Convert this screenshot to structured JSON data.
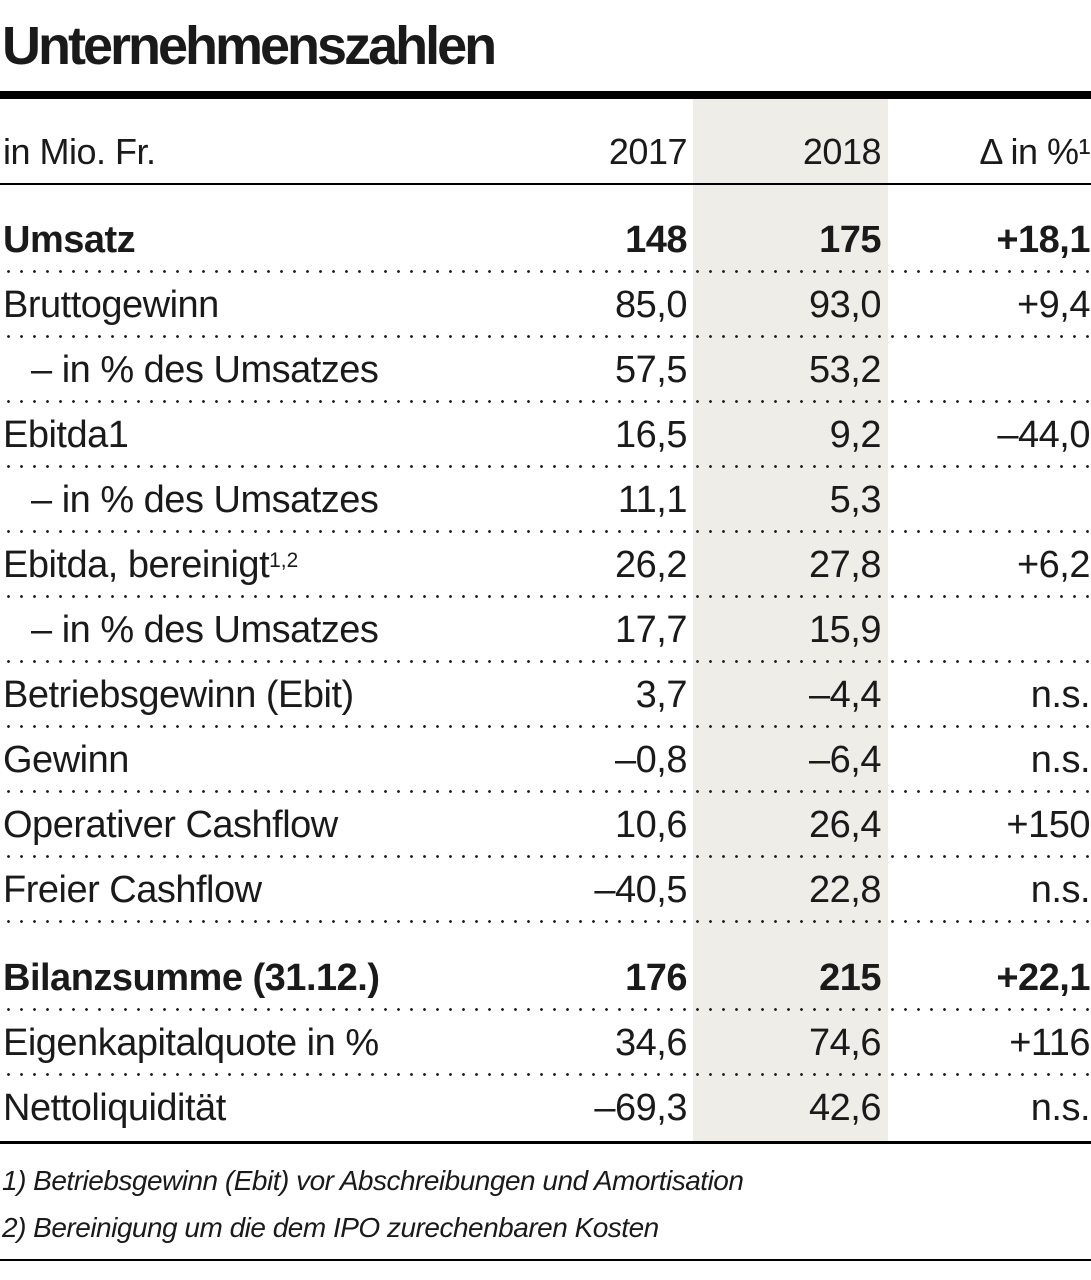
{
  "title": "Unternehmenszahlen",
  "table": {
    "unit_label": "in Mio. Fr.",
    "columns": [
      "2017",
      "2018",
      "Δ in %¹"
    ],
    "rows": [
      {
        "label": "Umsatz",
        "bold": true,
        "section_start": true,
        "v2017": "148",
        "v2018": "175",
        "delta": "+18,1"
      },
      {
        "label": "Bruttogewinn",
        "v2017": "85,0",
        "v2018": "93,0",
        "delta": "+9,4"
      },
      {
        "label": "– in % des Umsatzes",
        "indent": true,
        "v2017": "57,5",
        "v2018": "53,2",
        "delta": ""
      },
      {
        "label": "Ebitda1",
        "v2017": "16,5",
        "v2018": "9,2",
        "delta": "–44,0"
      },
      {
        "label": "– in % des Umsatzes",
        "indent": true,
        "v2017": "11,1",
        "v2018": "5,3",
        "delta": ""
      },
      {
        "label": "Ebitda, bereinigt",
        "sup": "1,2",
        "v2017": "26,2",
        "v2018": "27,8",
        "delta": "+6,2"
      },
      {
        "label": "– in % des Umsatzes",
        "indent": true,
        "v2017": "17,7",
        "v2018": "15,9",
        "delta": ""
      },
      {
        "label": "Betriebsgewinn (Ebit)",
        "v2017": "3,7",
        "v2018": "–4,4",
        "delta": "n.s."
      },
      {
        "label": "Gewinn",
        "v2017": "–0,8",
        "v2018": "–6,4",
        "delta": "n.s."
      },
      {
        "label": "Operativer Cashflow",
        "v2017": "10,6",
        "v2018": "26,4",
        "delta": "+150"
      },
      {
        "label": "Freier Cashflow",
        "v2017": "–40,5",
        "v2018": "22,8",
        "delta": "n.s."
      },
      {
        "label": "Bilanzsumme (31.12.)",
        "bold": true,
        "section_start": true,
        "v2017": "176",
        "v2018": "215",
        "delta": "+22,1"
      },
      {
        "label": "Eigenkapitalquote in %",
        "v2017": "34,6",
        "v2018": "74,6",
        "delta": "+116"
      },
      {
        "label": "Nettoliquidität",
        "v2017": "–69,3",
        "v2018": "42,6",
        "delta": "n.s."
      }
    ],
    "footnotes": [
      "1) Betriebsgewinn (Ebit) vor Abschreibungen und Amortisation",
      "2) Bereinigung um die dem IPO zurechenbaren Kosten"
    ]
  },
  "colors": {
    "band": "#eeede8",
    "text": "#1a1a1a",
    "rule": "#000000"
  },
  "chart_data": {
    "type": "table",
    "title": "Unternehmenszahlen",
    "unit": "in Mio. Fr.",
    "columns": [
      "in Mio. Fr.",
      "2017",
      "2018",
      "Δ in %¹"
    ],
    "rows": [
      [
        "Umsatz",
        "148",
        "175",
        "+18,1"
      ],
      [
        "Bruttogewinn",
        "85,0",
        "93,0",
        "+9,4"
      ],
      [
        "– in % des Umsatzes",
        "57,5",
        "53,2",
        ""
      ],
      [
        "Ebitda1",
        "16,5",
        "9,2",
        "–44,0"
      ],
      [
        "– in % des Umsatzes",
        "11,1",
        "5,3",
        ""
      ],
      [
        "Ebitda, bereinigt¹,²",
        "26,2",
        "27,8",
        "+6,2"
      ],
      [
        "– in % des Umsatzes",
        "17,7",
        "15,9",
        ""
      ],
      [
        "Betriebsgewinn (Ebit)",
        "3,7",
        "–4,4",
        "n.s."
      ],
      [
        "Gewinn",
        "–0,8",
        "–6,4",
        "n.s."
      ],
      [
        "Operativer Cashflow",
        "10,6",
        "26,4",
        "+150"
      ],
      [
        "Freier Cashflow",
        "–40,5",
        "22,8",
        "n.s."
      ],
      [
        "Bilanzsumme (31.12.)",
        "176",
        "215",
        "+22,1"
      ],
      [
        "Eigenkapitalquote in %",
        "34,6",
        "74,6",
        "+116"
      ],
      [
        "Nettoliquidität",
        "–69,3",
        "42,6",
        "n.s."
      ]
    ],
    "highlighted_column": "2018",
    "footnotes": [
      "1) Betriebsgewinn (Ebit) vor Abschreibungen und Amortisation",
      "2) Bereinigung um die dem IPO zurechenbaren Kosten"
    ]
  }
}
